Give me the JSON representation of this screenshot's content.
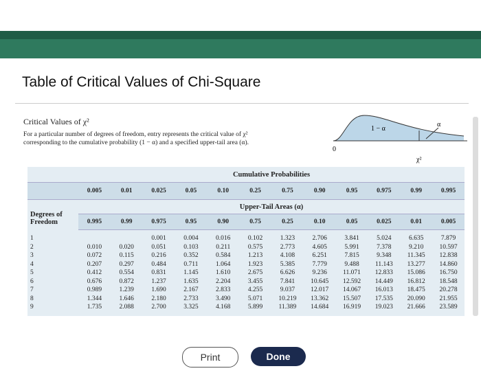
{
  "header": {
    "title": "Table of Critical Values of Chi-Square"
  },
  "section": {
    "heading": "Critical Values of χ²",
    "description": [
      "For a particular number of degrees of freedom, entry represents the critical value of χ²",
      "corresponding to the cumulative probability (1 − α) and a specified upper-tail area (α)."
    ]
  },
  "figure": {
    "labels": [
      "1 − α",
      "α",
      "0",
      "χ²"
    ]
  },
  "table": {
    "group_header": "Cumulative Probabilities",
    "cumulative": [
      "0.005",
      "0.01",
      "0.025",
      "0.05",
      "0.10",
      "0.25",
      "0.75",
      "0.90",
      "0.95",
      "0.975",
      "0.99",
      "0.995"
    ],
    "sub_header": "Upper-Tail Areas (α)",
    "row_header": "Degrees of Freedom",
    "upper_tail": [
      "0.995",
      "0.99",
      "0.975",
      "0.95",
      "0.90",
      "0.75",
      "0.25",
      "0.10",
      "0.05",
      "0.025",
      "0.01",
      "0.005"
    ],
    "rows": [
      [
        "1",
        null,
        null,
        "0.001",
        "0.004",
        "0.016",
        "0.102",
        "1.323",
        "2.706",
        "3.841",
        "5.024",
        "6.635",
        "7.879"
      ],
      [
        "2",
        "0.010",
        "0.020",
        "0.051",
        "0.103",
        "0.211",
        "0.575",
        "2.773",
        "4.605",
        "5.991",
        "7.378",
        "9.210",
        "10.597"
      ],
      [
        "3",
        "0.072",
        "0.115",
        "0.216",
        "0.352",
        "0.584",
        "1.213",
        "4.108",
        "6.251",
        "7.815",
        "9.348",
        "11.345",
        "12.838"
      ],
      [
        "4",
        "0.207",
        "0.297",
        "0.484",
        "0.711",
        "1.064",
        "1.923",
        "5.385",
        "7.779",
        "9.488",
        "11.143",
        "13.277",
        "14.860"
      ],
      [
        "5",
        "0.412",
        "0.554",
        "0.831",
        "1.145",
        "1.610",
        "2.675",
        "6.626",
        "9.236",
        "11.071",
        "12.833",
        "15.086",
        "16.750"
      ],
      [
        "6",
        "0.676",
        "0.872",
        "1.237",
        "1.635",
        "2.204",
        "3.455",
        "7.841",
        "10.645",
        "12.592",
        "14.449",
        "16.812",
        "18.548"
      ],
      [
        "7",
        "0.989",
        "1.239",
        "1.690",
        "2.167",
        "2.833",
        "4.255",
        "9.037",
        "12.017",
        "14.067",
        "16.013",
        "18.475",
        "20.278"
      ],
      [
        "8",
        "1.344",
        "1.646",
        "2.180",
        "2.733",
        "3.490",
        "5.071",
        "10.219",
        "13.362",
        "15.507",
        "17.535",
        "20.090",
        "21.955"
      ],
      [
        "9",
        "1.735",
        "2.088",
        "2.700",
        "3.325",
        "4.168",
        "5.899",
        "11.389",
        "14.684",
        "16.919",
        "19.023",
        "21.666",
        "23.589"
      ]
    ]
  },
  "buttons": {
    "print": "Print",
    "done": "Done"
  }
}
